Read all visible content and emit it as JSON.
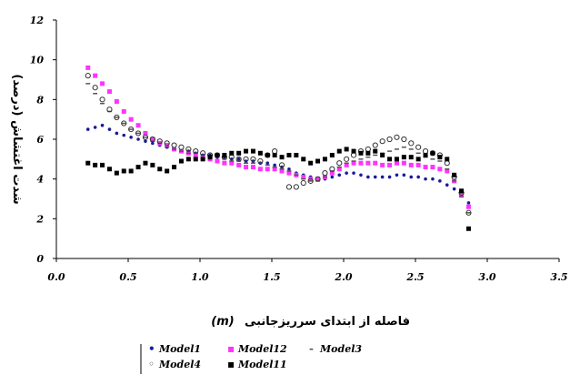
{
  "chart_data": {
    "type": "scatter",
    "xlabel": "فاصله از ابتدای سرریزجانبی",
    "xlabel_unit": "(m)",
    "ylabel": "شدت اغتشاش (درصد)",
    "xlim": [
      0.0,
      3.5
    ],
    "ylim": [
      0,
      12
    ],
    "x_ticks": [
      "0.0",
      "0.5",
      "1.0",
      "1.5",
      "2.0",
      "2.5",
      "3.0",
      "3.5"
    ],
    "y_ticks": [
      "0",
      "2",
      "4",
      "6",
      "8",
      "10",
      "12"
    ],
    "grid": false,
    "legend_position": "bottom",
    "series": [
      {
        "name": "Model1",
        "color": "#1a1a9a",
        "marker": "dot",
        "legend_symbol": "•",
        "x": [
          0.22,
          0.27,
          0.32,
          0.37,
          0.42,
          0.47,
          0.52,
          0.57,
          0.62,
          0.67,
          0.72,
          0.77,
          0.82,
          0.87,
          0.92,
          0.97,
          1.02,
          1.07,
          1.12,
          1.17,
          1.22,
          1.27,
          1.32,
          1.37,
          1.42,
          1.47,
          1.52,
          1.57,
          1.62,
          1.67,
          1.72,
          1.77,
          1.82,
          1.87,
          1.92,
          1.97,
          2.02,
          2.07,
          2.12,
          2.17,
          2.22,
          2.27,
          2.32,
          2.37,
          2.42,
          2.47,
          2.52,
          2.57,
          2.62,
          2.67,
          2.72,
          2.77,
          2.82,
          2.87
        ],
        "y": [
          6.5,
          6.6,
          6.7,
          6.5,
          6.3,
          6.2,
          6.1,
          6.0,
          5.9,
          5.8,
          5.7,
          5.6,
          5.5,
          5.4,
          5.4,
          5.3,
          5.2,
          5.2,
          5.1,
          5.1,
          5.0,
          5.0,
          4.9,
          4.9,
          4.8,
          4.8,
          4.7,
          4.6,
          4.5,
          4.3,
          4.2,
          4.1,
          4.0,
          4.0,
          4.1,
          4.2,
          4.3,
          4.3,
          4.2,
          4.1,
          4.1,
          4.1,
          4.1,
          4.2,
          4.2,
          4.1,
          4.1,
          4.0,
          4.0,
          3.9,
          3.7,
          3.5,
          3.2,
          2.8
        ]
      },
      {
        "name": "Model12",
        "color": "#ff33ff",
        "marker": "square",
        "legend_symbol": "▪",
        "x": [
          0.22,
          0.27,
          0.32,
          0.37,
          0.42,
          0.47,
          0.52,
          0.57,
          0.62,
          0.67,
          0.72,
          0.77,
          0.82,
          0.87,
          0.92,
          0.97,
          1.02,
          1.07,
          1.12,
          1.17,
          1.22,
          1.27,
          1.32,
          1.37,
          1.42,
          1.47,
          1.52,
          1.57,
          1.62,
          1.67,
          1.72,
          1.77,
          1.82,
          1.87,
          1.92,
          1.97,
          2.02,
          2.07,
          2.12,
          2.17,
          2.22,
          2.27,
          2.32,
          2.37,
          2.42,
          2.47,
          2.52,
          2.57,
          2.62,
          2.67,
          2.72,
          2.77,
          2.82,
          2.87
        ],
        "y": [
          9.6,
          9.2,
          8.8,
          8.4,
          7.9,
          7.4,
          7.0,
          6.7,
          6.3,
          6.0,
          5.8,
          5.7,
          5.5,
          5.4,
          5.3,
          5.2,
          5.1,
          5.0,
          4.9,
          4.8,
          4.8,
          4.7,
          4.6,
          4.6,
          4.5,
          4.5,
          4.5,
          4.4,
          4.3,
          4.2,
          4.1,
          4.0,
          4.0,
          4.1,
          4.3,
          4.5,
          4.7,
          4.8,
          4.8,
          4.8,
          4.8,
          4.7,
          4.7,
          4.8,
          4.8,
          4.7,
          4.7,
          4.6,
          4.6,
          4.5,
          4.4,
          3.9,
          3.2,
          2.6
        ]
      },
      {
        "name": "Model3",
        "color": "#555555",
        "marker": "dash",
        "legend_symbol": "-",
        "x": [
          0.22,
          0.27,
          0.32,
          0.37,
          0.42,
          0.47,
          0.52,
          0.57,
          0.62,
          0.67,
          0.72,
          0.77,
          0.82,
          0.87,
          0.92,
          0.97,
          1.02,
          1.07,
          1.12,
          1.17,
          1.22,
          1.27,
          1.32,
          1.37,
          1.42,
          1.47,
          1.52,
          1.57,
          1.62,
          1.67,
          1.72,
          1.77,
          1.82,
          1.87,
          1.92,
          1.97,
          2.02,
          2.07,
          2.12,
          2.17,
          2.22,
          2.27,
          2.32,
          2.37,
          2.42,
          2.47,
          2.52,
          2.57,
          2.62,
          2.67,
          2.72,
          2.77,
          2.82,
          2.87
        ],
        "y": [
          8.8,
          8.3,
          7.8,
          7.4,
          7.1,
          6.8,
          6.5,
          6.3,
          6.1,
          5.9,
          5.8,
          5.6,
          5.5,
          5.4,
          5.3,
          5.3,
          5.2,
          5.1,
          5.1,
          5.0,
          4.9,
          4.9,
          4.8,
          4.8,
          4.8,
          4.7,
          4.6,
          4.5,
          4.4,
          4.2,
          4.0,
          3.9,
          3.9,
          4.1,
          4.4,
          4.6,
          4.8,
          4.9,
          5.0,
          5.1,
          5.2,
          5.3,
          5.4,
          5.5,
          5.6,
          5.5,
          5.3,
          5.1,
          5.0,
          4.9,
          4.5,
          3.9,
          3.1,
          2.3
        ]
      },
      {
        "name": "Model4",
        "color": "#333333",
        "marker": "circle-open",
        "legend_symbol": "◦",
        "x": [
          0.22,
          0.27,
          0.32,
          0.37,
          0.42,
          0.47,
          0.52,
          0.57,
          0.62,
          0.67,
          0.72,
          0.77,
          0.82,
          0.87,
          0.92,
          0.97,
          1.02,
          1.07,
          1.12,
          1.17,
          1.22,
          1.27,
          1.32,
          1.37,
          1.42,
          1.47,
          1.52,
          1.57,
          1.62,
          1.67,
          1.72,
          1.77,
          1.82,
          1.87,
          1.92,
          1.97,
          2.02,
          2.07,
          2.12,
          2.17,
          2.22,
          2.27,
          2.32,
          2.37,
          2.42,
          2.47,
          2.52,
          2.57,
          2.62,
          2.67,
          2.72,
          2.77,
          2.82,
          2.87
        ],
        "y": [
          9.2,
          8.6,
          8.0,
          7.5,
          7.1,
          6.8,
          6.5,
          6.3,
          6.1,
          6.0,
          5.9,
          5.8,
          5.7,
          5.6,
          5.5,
          5.4,
          5.3,
          5.2,
          5.2,
          5.1,
          5.1,
          5.0,
          5.0,
          5.0,
          4.9,
          5.2,
          5.4,
          4.7,
          3.6,
          3.6,
          3.8,
          3.9,
          4.0,
          4.3,
          4.5,
          4.8,
          5.0,
          5.2,
          5.4,
          5.5,
          5.7,
          5.9,
          6.0,
          6.1,
          6.0,
          5.8,
          5.6,
          5.4,
          5.3,
          5.2,
          4.8,
          4.1,
          3.3,
          2.3
        ]
      },
      {
        "name": "Model11",
        "color": "#000000",
        "marker": "square",
        "legend_symbol": "▪",
        "x": [
          0.22,
          0.27,
          0.32,
          0.37,
          0.42,
          0.47,
          0.52,
          0.57,
          0.62,
          0.67,
          0.72,
          0.77,
          0.82,
          0.87,
          0.92,
          0.97,
          1.02,
          1.07,
          1.12,
          1.17,
          1.22,
          1.27,
          1.32,
          1.37,
          1.42,
          1.47,
          1.52,
          1.57,
          1.62,
          1.67,
          1.72,
          1.77,
          1.82,
          1.87,
          1.92,
          1.97,
          2.02,
          2.07,
          2.12,
          2.17,
          2.22,
          2.27,
          2.32,
          2.37,
          2.42,
          2.47,
          2.52,
          2.57,
          2.62,
          2.67,
          2.72,
          2.77,
          2.82,
          2.87
        ],
        "y": [
          4.8,
          4.7,
          4.7,
          4.5,
          4.3,
          4.4,
          4.4,
          4.6,
          4.8,
          4.7,
          4.5,
          4.4,
          4.6,
          4.9,
          5.0,
          5.0,
          5.0,
          5.1,
          5.2,
          5.2,
          5.3,
          5.3,
          5.4,
          5.4,
          5.3,
          5.2,
          5.2,
          5.1,
          5.2,
          5.2,
          5.0,
          4.8,
          4.9,
          5.0,
          5.2,
          5.4,
          5.5,
          5.4,
          5.3,
          5.3,
          5.4,
          5.2,
          5.0,
          5.0,
          5.1,
          5.1,
          5.0,
          5.2,
          5.3,
          5.1,
          5.0,
          4.2,
          3.4,
          1.5
        ]
      }
    ],
    "legend": [
      {
        "label": "Model1",
        "symbol": "•",
        "color": "#1a1a9a",
        "row": 0,
        "col": 0
      },
      {
        "label": "Model12",
        "symbol": "▪",
        "color": "#ff33ff",
        "row": 0,
        "col": 1
      },
      {
        "label": "Model3",
        "symbol": "-",
        "color": "#555555",
        "row": 0,
        "col": 2
      },
      {
        "label": "Model4",
        "symbol": "◦",
        "color": "#333333",
        "row": 1,
        "col": 0
      },
      {
        "label": "Model11",
        "symbol": "▪",
        "color": "#000000",
        "row": 1,
        "col": 1
      }
    ]
  }
}
